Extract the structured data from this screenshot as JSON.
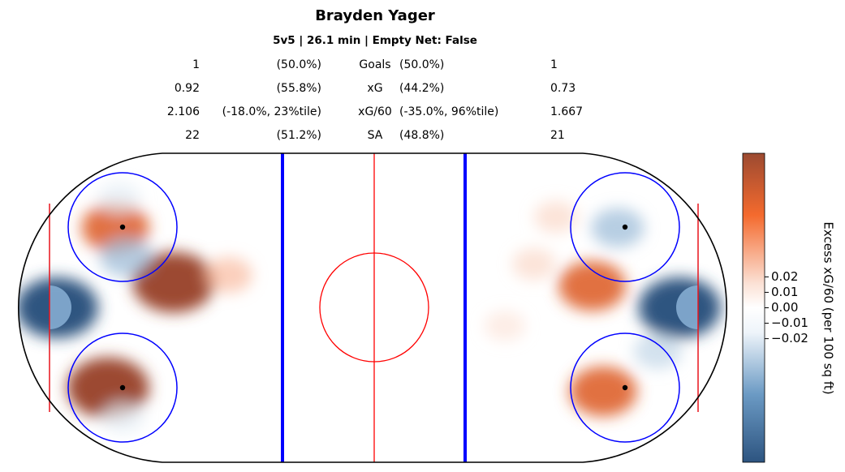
{
  "header": {
    "title": "Brayden Yager",
    "subtitle": "5v5 | 26.1 min | Empty Net: False"
  },
  "stats": [
    {
      "left": "1",
      "left_pct": "(50.0%)",
      "label": "Goals",
      "right_pct": "(50.0%)",
      "right": "1"
    },
    {
      "left": "0.92",
      "left_pct": "(55.8%)",
      "label": "xG",
      "right_pct": "(44.2%)",
      "right": "0.73"
    },
    {
      "left": "2.106",
      "left_pct": "(-18.0%, 23%tile)",
      "label": "xG/60",
      "right_pct": "(-35.0%, 96%tile)",
      "right": "1.667"
    },
    {
      "left": "22",
      "left_pct": "(51.2%)",
      "label": "SA",
      "right_pct": "(48.8%)",
      "right": "21"
    }
  ],
  "chart_data": {
    "type": "heatmap",
    "title": "Brayden Yager",
    "colorbar": {
      "label": "Excess xG/60 (per 100 sq ft)",
      "ticks": [
        "0.02",
        "0.01",
        "0.00",
        "−0.01",
        "−0.02"
      ],
      "tick_values": [
        0.02,
        0.01,
        0.0,
        -0.01,
        -0.02
      ],
      "range": [
        -0.1,
        0.1
      ],
      "colormap": [
        "#2d5480",
        "#6b9ac4",
        "#eef4fa",
        "#ffffff",
        "#fbe0d4",
        "#f46a2e",
        "#9c4a31"
      ]
    },
    "rink": {
      "length_ft": 200,
      "width_ft": 85,
      "line_colors": {
        "board": "#000000",
        "blue_line": "#0000ff",
        "red_line": "#ff0000",
        "faceoff_circle": "#0000ff"
      }
    },
    "hotspots": [
      {
        "zone": "left",
        "x": -87,
        "y": 0,
        "value": -0.1
      },
      {
        "zone": "left",
        "x": -73,
        "y": -22,
        "value": 0.1
      },
      {
        "zone": "left",
        "x": -71,
        "y": 22,
        "value": 0.07
      },
      {
        "zone": "left",
        "x": -55,
        "y": 7,
        "value": 0.1
      },
      {
        "zone": "left",
        "x": -40,
        "y": 9,
        "value": 0.03
      },
      {
        "zone": "left",
        "x": -70,
        "y": 30,
        "value": -0.02
      },
      {
        "zone": "left",
        "x": -69,
        "y": -30,
        "value": -0.02
      },
      {
        "zone": "left",
        "x": -68,
        "y": 14,
        "value": -0.04
      },
      {
        "zone": "right",
        "x": 84,
        "y": 0,
        "value": -0.1
      },
      {
        "zone": "right",
        "x": 67,
        "y": 22,
        "value": -0.04
      },
      {
        "zone": "right",
        "x": 60,
        "y": 6,
        "value": 0.07
      },
      {
        "zone": "right",
        "x": 63,
        "y": -23,
        "value": 0.07
      },
      {
        "zone": "right",
        "x": 44,
        "y": 12,
        "value": 0.02
      },
      {
        "zone": "right",
        "x": 36,
        "y": -5,
        "value": 0.015
      },
      {
        "zone": "right",
        "x": 78,
        "y": -12,
        "value": -0.03
      },
      {
        "zone": "right",
        "x": 50,
        "y": 25,
        "value": 0.02
      }
    ]
  }
}
